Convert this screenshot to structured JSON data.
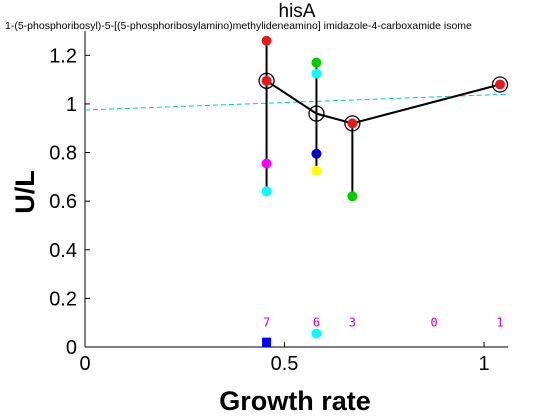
{
  "chart_data": {
    "type": "scatter",
    "title": "hisA",
    "subtitle": "1-(5-phosphoribosyl)-5-[(5-phosphoribosylamino)methylideneamino] imidazole-4-carboxamide isome",
    "xlabel": "Growth rate",
    "ylabel": "U/L",
    "xlim": [
      0,
      1.06
    ],
    "ylim": [
      0,
      1.3
    ],
    "xticks": [
      0,
      0.5,
      1
    ],
    "xtick_labels": [
      "0",
      "0.5",
      "1"
    ],
    "yticks": [
      0,
      0.2,
      0.4,
      0.6,
      0.8,
      1.0,
      1.2
    ],
    "ytick_labels": [
      "0",
      "0.2",
      "0.4",
      "0.6",
      "0.8",
      "1",
      "1.2"
    ],
    "grid": false,
    "mean_series": {
      "x": [
        0.455,
        0.58,
        0.67,
        1.04
      ],
      "y": [
        1.095,
        0.96,
        0.92,
        1.08
      ],
      "line_color": "#000000",
      "marker_color": "#e31a1c"
    },
    "range_bars": [
      {
        "x": 0.455,
        "low": 0.64,
        "high": 1.26
      },
      {
        "x": 0.58,
        "low": 0.73,
        "high": 1.17
      },
      {
        "x": 0.67,
        "low": 0.62,
        "high": 0.92
      },
      {
        "x": 1.04,
        "low": 1.08,
        "high": 1.08
      }
    ],
    "replicate_points": [
      {
        "x": 0.455,
        "y": 1.26,
        "color": "#e31a1c"
      },
      {
        "x": 0.455,
        "y": 1.095,
        "color": "#e31a1c"
      },
      {
        "x": 0.455,
        "y": 0.755,
        "color": "#ff00ff"
      },
      {
        "x": 0.455,
        "y": 0.64,
        "color": "#00ffff"
      },
      {
        "x": 0.58,
        "y": 1.17,
        "color": "#00cc00"
      },
      {
        "x": 0.58,
        "y": 1.125,
        "color": "#00ffff"
      },
      {
        "x": 0.58,
        "y": 0.795,
        "color": "#0000cc"
      },
      {
        "x": 0.58,
        "y": 0.725,
        "color": "#ffff00"
      },
      {
        "x": 0.67,
        "y": 0.92,
        "color": "#e31a1c"
      },
      {
        "x": 0.67,
        "y": 0.62,
        "color": "#00cc00"
      },
      {
        "x": 1.04,
        "y": 1.08,
        "color": "#e31a1c"
      }
    ],
    "fit_line": {
      "x": [
        0,
        1.06
      ],
      "y": [
        0.975,
        1.04
      ],
      "color": "#00cccc",
      "style": "dashed"
    },
    "count_labels": [
      {
        "x": 0.455,
        "text": "7"
      },
      {
        "x": 0.58,
        "text": "6"
      },
      {
        "x": 0.67,
        "text": "3"
      },
      {
        "x": 0.875,
        "text": "0"
      },
      {
        "x": 1.04,
        "text": "1"
      }
    ],
    "count_label_y": 0.1,
    "count_label_color": "#cc00cc",
    "bottom_markers": [
      {
        "x": 0.455,
        "y": 0.02,
        "shape": "square",
        "color": "#0000ff"
      },
      {
        "x": 0.58,
        "y": 0.055,
        "shape": "circle",
        "color": "#00ffff"
      }
    ]
  }
}
